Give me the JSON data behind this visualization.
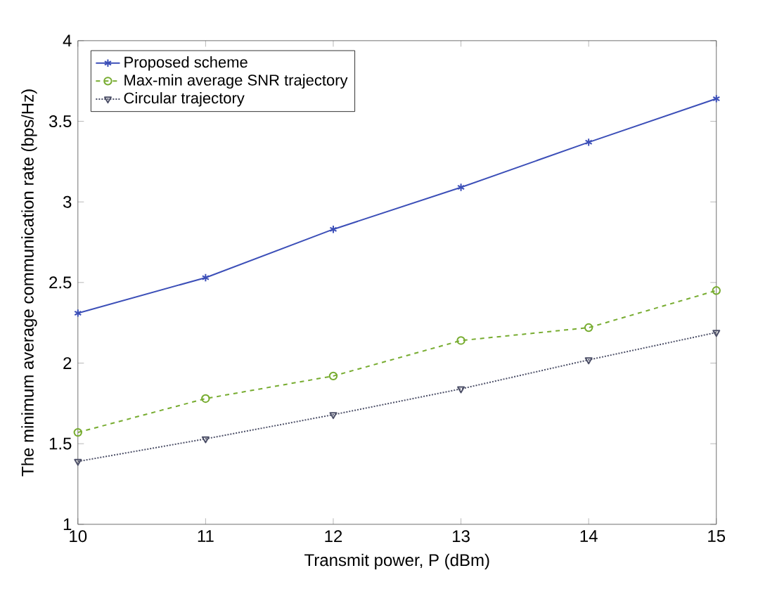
{
  "chart_data": {
    "type": "line",
    "xlabel": "Transmit power, P (dBm)",
    "ylabel": "The minimum average communication rate (bps/Hz)",
    "x": [
      10,
      11,
      12,
      13,
      14,
      15
    ],
    "series": [
      {
        "name": "Proposed scheme",
        "color": "#3c4fb8",
        "marker": "cross",
        "line_style": "solid",
        "values": [
          2.31,
          2.53,
          2.83,
          3.09,
          3.37,
          3.64
        ]
      },
      {
        "name": "Max-min average SNR trajectory",
        "color": "#77ac30",
        "marker": "circle",
        "line_style": "dashed",
        "values": [
          1.57,
          1.78,
          1.92,
          2.14,
          2.22,
          2.45
        ]
      },
      {
        "name": "Circular trajectory",
        "color": "#4d5068",
        "marker": "triangle",
        "line_style": "dotted",
        "values": [
          1.39,
          1.53,
          1.68,
          1.84,
          2.02,
          2.19
        ]
      }
    ],
    "xlim": [
      10,
      15
    ],
    "xticks": [
      10,
      11,
      12,
      13,
      14,
      15
    ],
    "ylim": [
      1,
      4
    ],
    "yticks": [
      1,
      1.5,
      2,
      2.5,
      3,
      3.5,
      4
    ],
    "grid": false,
    "legend": "top left"
  }
}
